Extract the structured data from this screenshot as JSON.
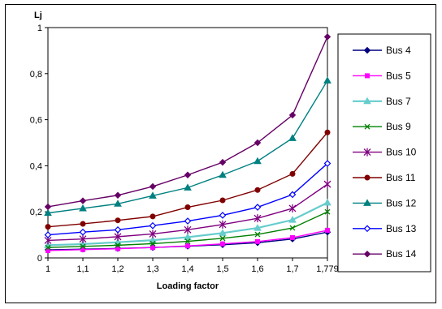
{
  "chart_data": {
    "type": "line",
    "title": "",
    "xlabel": "Loading factor",
    "ylabel": "Lj",
    "categories": [
      "1",
      "1,1",
      "1,2",
      "1,3",
      "1,4",
      "1,5",
      "1,6",
      "1,7",
      "1,779"
    ],
    "ylim": [
      0,
      1
    ],
    "yticks": [
      "0",
      "0,2",
      "0,4",
      "0,6",
      "0,8",
      "1"
    ],
    "grid": false,
    "legend_position": "right",
    "series": [
      {
        "name": "Bus 4",
        "color": "#000080",
        "marker": "diamond",
        "values": [
          0.035,
          0.038,
          0.041,
          0.045,
          0.051,
          0.057,
          0.066,
          0.082,
          0.112
        ]
      },
      {
        "name": "Bus 5",
        "color": "#ff00ff",
        "marker": "square",
        "values": [
          0.032,
          0.036,
          0.04,
          0.045,
          0.052,
          0.061,
          0.071,
          0.088,
          0.12
        ]
      },
      {
        "name": "Bus 7",
        "color": "#66cccc",
        "marker": "triangle",
        "values": [
          0.055,
          0.06,
          0.068,
          0.077,
          0.09,
          0.108,
          0.13,
          0.165,
          0.24
        ]
      },
      {
        "name": "Bus 9",
        "color": "#008000",
        "marker": "x",
        "values": [
          0.045,
          0.05,
          0.055,
          0.062,
          0.072,
          0.085,
          0.102,
          0.13,
          0.2
        ]
      },
      {
        "name": "Bus 10",
        "color": "#800080",
        "marker": "asterisk",
        "values": [
          0.076,
          0.082,
          0.092,
          0.104,
          0.122,
          0.145,
          0.172,
          0.215,
          0.32
        ]
      },
      {
        "name": "Bus 11",
        "color": "#800000",
        "marker": "circle",
        "values": [
          0.135,
          0.148,
          0.163,
          0.18,
          0.22,
          0.25,
          0.295,
          0.365,
          0.545
        ]
      },
      {
        "name": "Bus 12",
        "color": "#008080",
        "marker": "triangle",
        "values": [
          0.195,
          0.215,
          0.235,
          0.27,
          0.305,
          0.36,
          0.42,
          0.52,
          0.77
        ]
      },
      {
        "name": "Bus 13",
        "color": "#0000ff",
        "marker": "diamond-open",
        "values": [
          0.1,
          0.112,
          0.122,
          0.14,
          0.16,
          0.185,
          0.22,
          0.275,
          0.41
        ]
      },
      {
        "name": "Bus 14",
        "color": "#660066",
        "marker": "diamond",
        "values": [
          0.222,
          0.248,
          0.272,
          0.31,
          0.36,
          0.415,
          0.5,
          0.62,
          0.96
        ]
      }
    ]
  }
}
